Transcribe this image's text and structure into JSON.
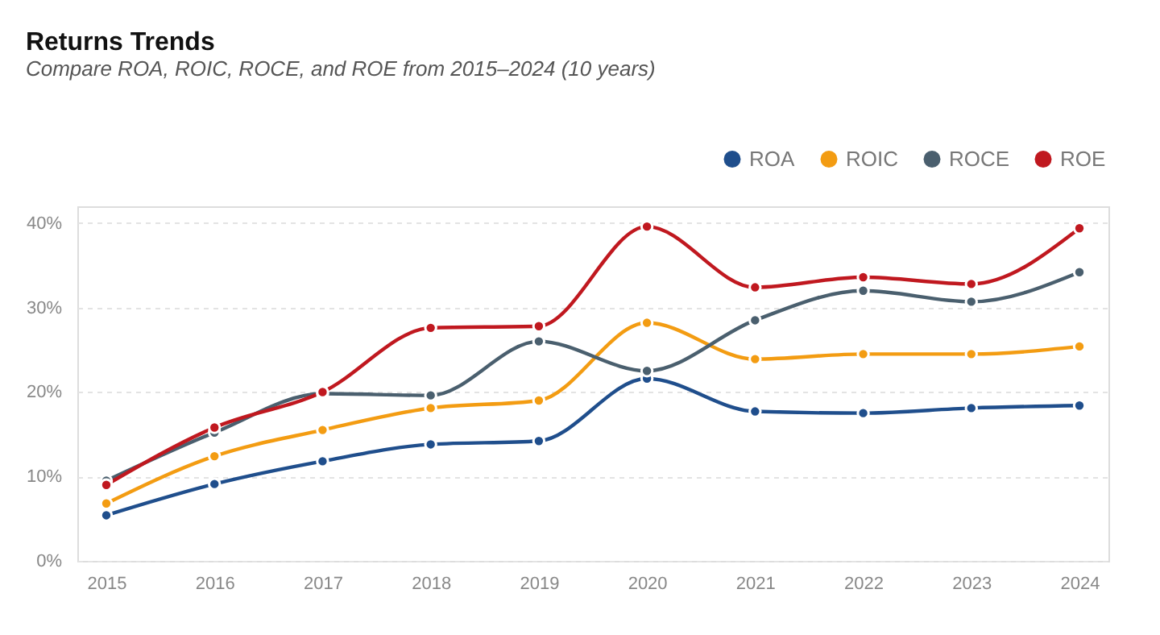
{
  "chart_data": {
    "type": "line",
    "title": "Returns Trends",
    "subtitle": "Compare ROA, ROIC, ROCE, and ROE from 2015–2024 (10 years)",
    "categories": [
      "2015",
      "2016",
      "2017",
      "2018",
      "2019",
      "2020",
      "2021",
      "2022",
      "2023",
      "2024"
    ],
    "series": [
      {
        "name": "ROA",
        "color": "#1f4e8c",
        "values": [
          5.4,
          9.1,
          11.8,
          13.8,
          14.2,
          21.6,
          17.7,
          17.5,
          18.1,
          18.4
        ]
      },
      {
        "name": "ROIC",
        "color": "#f39c12",
        "values": [
          6.8,
          12.4,
          15.5,
          18.1,
          19.0,
          28.2,
          23.9,
          24.5,
          24.5,
          25.4
        ]
      },
      {
        "name": "ROCE",
        "color": "#4a5f6e",
        "values": [
          9.5,
          15.2,
          19.8,
          19.6,
          26.0,
          22.5,
          28.5,
          32.0,
          30.7,
          34.2
        ]
      },
      {
        "name": "ROE",
        "color": "#c0181f",
        "values": [
          9.0,
          15.8,
          20.0,
          27.6,
          27.8,
          39.6,
          32.4,
          33.6,
          32.8,
          39.4
        ]
      }
    ],
    "ylim": [
      0,
      42
    ],
    "yticks": [
      {
        "value": 0,
        "label": "0%"
      },
      {
        "value": 10,
        "label": "10%"
      },
      {
        "value": 20,
        "label": "20%"
      },
      {
        "value": 30,
        "label": "30%"
      },
      {
        "value": 40,
        "label": "40%"
      }
    ],
    "grid": "y",
    "legend": "top right",
    "marker": "circle",
    "line_style": "solid"
  }
}
